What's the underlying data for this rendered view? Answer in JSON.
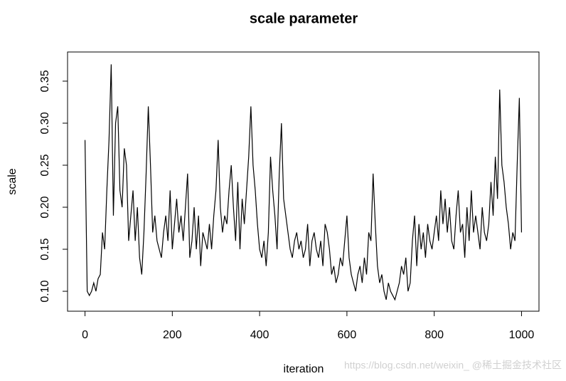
{
  "chart_data": {
    "type": "line",
    "title": "scale parameter",
    "xlabel": "iteration",
    "ylabel": "scale",
    "color": "#000000",
    "xlim": [
      -40,
      1040
    ],
    "xticks": [
      0,
      200,
      400,
      600,
      800,
      1000
    ],
    "ylim": [
      0.0763,
      0.3847
    ],
    "yticks": [
      {
        "value": 0.1,
        "label": "0.10"
      },
      0.15,
      {
        "value": 0.2,
        "label": "0.20"
      },
      0.25,
      {
        "value": 0.3,
        "label": "0.30"
      },
      0.35
    ],
    "x": [
      0,
      5,
      10,
      15,
      20,
      25,
      30,
      35,
      40,
      45,
      50,
      55,
      60,
      65,
      70,
      75,
      80,
      85,
      90,
      95,
      100,
      105,
      110,
      115,
      120,
      125,
      130,
      135,
      140,
      145,
      150,
      155,
      160,
      165,
      170,
      175,
      180,
      185,
      190,
      195,
      200,
      205,
      210,
      215,
      220,
      225,
      230,
      235,
      240,
      245,
      250,
      255,
      260,
      265,
      270,
      275,
      280,
      285,
      290,
      295,
      300,
      305,
      310,
      315,
      320,
      325,
      330,
      335,
      340,
      345,
      350,
      355,
      360,
      365,
      370,
      375,
      380,
      385,
      390,
      395,
      400,
      405,
      410,
      415,
      420,
      425,
      430,
      435,
      440,
      445,
      450,
      455,
      460,
      465,
      470,
      475,
      480,
      485,
      490,
      495,
      500,
      505,
      510,
      515,
      520,
      525,
      530,
      535,
      540,
      545,
      550,
      555,
      560,
      565,
      570,
      575,
      580,
      585,
      590,
      595,
      600,
      605,
      610,
      615,
      620,
      625,
      630,
      635,
      640,
      645,
      650,
      655,
      660,
      665,
      670,
      675,
      680,
      685,
      690,
      695,
      700,
      705,
      710,
      715,
      720,
      725,
      730,
      735,
      740,
      745,
      750,
      755,
      760,
      765,
      770,
      775,
      780,
      785,
      790,
      795,
      800,
      805,
      810,
      815,
      820,
      825,
      830,
      835,
      840,
      845,
      850,
      855,
      860,
      865,
      870,
      875,
      880,
      885,
      890,
      895,
      900,
      905,
      910,
      915,
      920,
      925,
      930,
      935,
      940,
      945,
      950,
      955,
      960,
      965,
      970,
      975,
      980,
      985,
      990,
      995,
      1000
    ],
    "values": [
      0.28,
      0.1,
      0.095,
      0.1,
      0.11,
      0.1,
      0.115,
      0.12,
      0.17,
      0.15,
      0.22,
      0.28,
      0.37,
      0.19,
      0.3,
      0.32,
      0.22,
      0.2,
      0.27,
      0.25,
      0.16,
      0.19,
      0.22,
      0.16,
      0.2,
      0.14,
      0.12,
      0.17,
      0.24,
      0.32,
      0.25,
      0.17,
      0.19,
      0.16,
      0.15,
      0.14,
      0.17,
      0.19,
      0.16,
      0.22,
      0.15,
      0.18,
      0.21,
      0.17,
      0.19,
      0.16,
      0.2,
      0.24,
      0.14,
      0.16,
      0.2,
      0.15,
      0.19,
      0.13,
      0.17,
      0.16,
      0.15,
      0.18,
      0.15,
      0.19,
      0.22,
      0.28,
      0.2,
      0.17,
      0.19,
      0.18,
      0.22,
      0.25,
      0.2,
      0.16,
      0.23,
      0.15,
      0.21,
      0.18,
      0.22,
      0.26,
      0.32,
      0.25,
      0.22,
      0.18,
      0.15,
      0.14,
      0.16,
      0.13,
      0.17,
      0.26,
      0.22,
      0.19,
      0.15,
      0.24,
      0.3,
      0.21,
      0.19,
      0.17,
      0.15,
      0.14,
      0.16,
      0.17,
      0.15,
      0.16,
      0.14,
      0.15,
      0.18,
      0.13,
      0.16,
      0.17,
      0.15,
      0.14,
      0.16,
      0.13,
      0.18,
      0.17,
      0.15,
      0.12,
      0.13,
      0.11,
      0.12,
      0.14,
      0.13,
      0.16,
      0.19,
      0.14,
      0.12,
      0.11,
      0.1,
      0.12,
      0.13,
      0.11,
      0.14,
      0.12,
      0.17,
      0.16,
      0.24,
      0.18,
      0.13,
      0.11,
      0.12,
      0.1,
      0.09,
      0.11,
      0.1,
      0.095,
      0.09,
      0.1,
      0.11,
      0.13,
      0.12,
      0.14,
      0.1,
      0.11,
      0.16,
      0.19,
      0.13,
      0.18,
      0.15,
      0.17,
      0.14,
      0.18,
      0.16,
      0.15,
      0.17,
      0.19,
      0.16,
      0.22,
      0.18,
      0.21,
      0.17,
      0.2,
      0.16,
      0.15,
      0.19,
      0.22,
      0.17,
      0.18,
      0.14,
      0.2,
      0.16,
      0.22,
      0.17,
      0.19,
      0.17,
      0.15,
      0.2,
      0.17,
      0.16,
      0.18,
      0.23,
      0.19,
      0.26,
      0.21,
      0.34,
      0.25,
      0.23,
      0.2,
      0.18,
      0.15,
      0.17,
      0.16,
      0.25,
      0.33,
      0.17
    ],
    "watermark": "https://blog.csdn.net/weixin_  @稀土掘金技术社区"
  }
}
